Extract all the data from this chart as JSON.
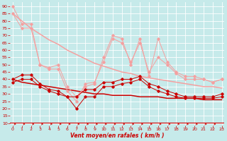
{
  "x": [
    0,
    1,
    2,
    3,
    4,
    5,
    6,
    7,
    8,
    9,
    10,
    11,
    12,
    13,
    14,
    15,
    16,
    17,
    18,
    19,
    20,
    21,
    22,
    23
  ],
  "line_pink1": [
    90,
    78,
    78,
    50,
    48,
    50,
    35,
    28,
    35,
    37,
    55,
    70,
    68,
    50,
    68,
    42,
    68,
    52,
    45,
    42,
    42,
    40,
    38,
    40
  ],
  "line_pink2": [
    85,
    75,
    75,
    50,
    47,
    47,
    32,
    25,
    37,
    38,
    52,
    68,
    65,
    52,
    65,
    45,
    55,
    50,
    44,
    40,
    40,
    40,
    38,
    40
  ],
  "line_pink_trend": [
    85,
    80,
    75,
    71,
    67,
    64,
    60,
    57,
    54,
    51,
    49,
    47,
    45,
    44,
    42,
    41,
    40,
    39,
    38,
    37,
    36,
    35,
    35,
    34
  ],
  "line_red1": [
    40,
    43,
    43,
    37,
    33,
    32,
    28,
    28,
    33,
    33,
    38,
    38,
    40,
    40,
    42,
    37,
    35,
    32,
    30,
    28,
    28,
    28,
    28,
    30
  ],
  "line_red2": [
    38,
    40,
    40,
    35,
    32,
    30,
    28,
    20,
    28,
    28,
    35,
    35,
    37,
    38,
    40,
    35,
    32,
    30,
    28,
    27,
    27,
    27,
    27,
    28
  ],
  "line_red_trend": [
    40,
    38,
    37,
    36,
    35,
    34,
    33,
    32,
    31,
    30,
    30,
    29,
    29,
    29,
    28,
    28,
    28,
    27,
    27,
    27,
    27,
    26,
    26,
    26
  ],
  "bg_color": "#c6eaea",
  "grid_color": "#ffffff",
  "line_pink_color": "#f5a0a0",
  "line_red_color": "#cc0000",
  "xlabel": "Vent moyen/en rafales ( km/h )",
  "xlabel_color": "#cc0000",
  "tick_color": "#cc0000",
  "yticks": [
    10,
    15,
    20,
    25,
    30,
    35,
    40,
    45,
    50,
    55,
    60,
    65,
    70,
    75,
    80,
    85,
    90
  ],
  "xticks": [
    0,
    1,
    2,
    3,
    4,
    5,
    6,
    7,
    8,
    9,
    10,
    11,
    12,
    13,
    14,
    15,
    16,
    17,
    18,
    19,
    20,
    21,
    22,
    23
  ],
  "ylim": [
    8.5,
    93
  ],
  "xlim": [
    -0.3,
    23.3
  ]
}
